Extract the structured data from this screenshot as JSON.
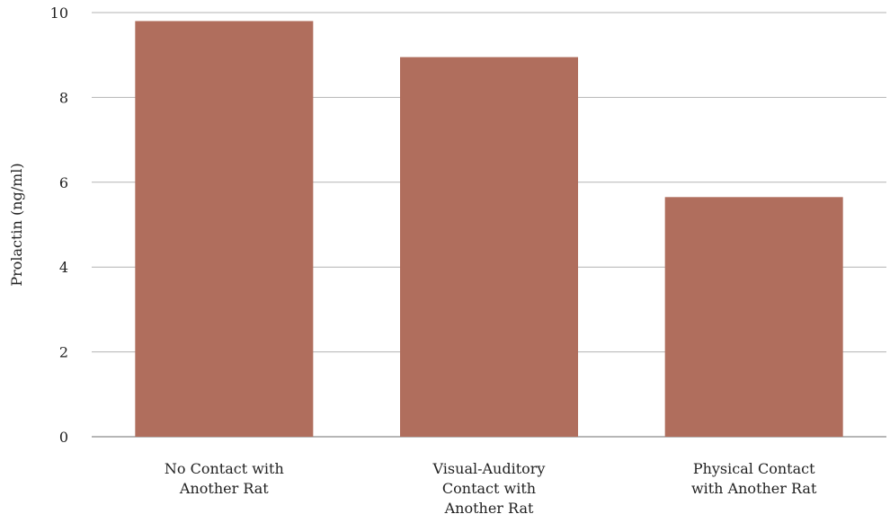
{
  "chart_data": {
    "type": "bar",
    "title": "",
    "xlabel": "",
    "ylabel": "Prolactin (ng/ml)",
    "ylim": [
      0,
      10
    ],
    "yticks": [
      0,
      2,
      4,
      6,
      8,
      10
    ],
    "grid": true,
    "legend": "none",
    "bar_color": "#b06e5d",
    "categories": [
      [
        "No Contact with",
        "Another Rat"
      ],
      [
        "Visual-Auditory",
        "Contact with",
        "Another Rat"
      ],
      [
        "Physical Contact",
        "with Another Rat"
      ]
    ],
    "values": [
      9.8,
      8.95,
      5.65
    ]
  }
}
